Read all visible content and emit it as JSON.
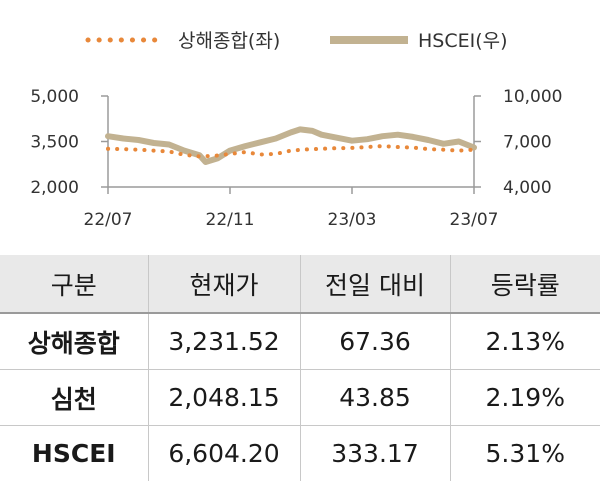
{
  "chart_data": {
    "type": "line",
    "xlabel": "",
    "ylabel": "",
    "x_ticks": [
      "22/07",
      "22/11",
      "23/03",
      "23/07"
    ],
    "x_range": [
      0,
      12
    ],
    "left_axis": {
      "range": [
        2000,
        5000
      ],
      "ticks": [
        "2,000",
        "3,500",
        "5,000"
      ],
      "tick_values": [
        2000,
        3500,
        5000
      ]
    },
    "right_axis": {
      "range": [
        4000,
        10000
      ],
      "ticks": [
        "4,000",
        "7,000",
        "10,000"
      ],
      "tick_values": [
        4000,
        7000,
        10000
      ]
    },
    "grid": false,
    "legend_position": "top",
    "series": [
      {
        "name": "상해종합(좌)",
        "axis": "left",
        "style": "dotted",
        "color": "#e8883a",
        "x": [
          0,
          0.5,
          1,
          1.5,
          2,
          2.5,
          3,
          3.5,
          4,
          4.5,
          5,
          5.5,
          6,
          6.5,
          7,
          7.5,
          8,
          8.5,
          9,
          9.5,
          10,
          10.5,
          11,
          11.5,
          12
        ],
        "values": [
          3260,
          3250,
          3230,
          3200,
          3170,
          3060,
          3010,
          3030,
          3090,
          3150,
          3070,
          3090,
          3200,
          3240,
          3260,
          3280,
          3290,
          3320,
          3350,
          3320,
          3300,
          3250,
          3230,
          3200,
          3231
        ]
      },
      {
        "name": "HSCEI(우)",
        "axis": "right",
        "style": "solid",
        "color": "#c2b291",
        "x": [
          0,
          0.5,
          1,
          1.5,
          2,
          2.5,
          3,
          3.2,
          3.6,
          4,
          4.5,
          5,
          5.5,
          6,
          6.3,
          6.7,
          7,
          7.5,
          8,
          8.5,
          9,
          9.5,
          10,
          10.5,
          11,
          11.5,
          12
        ],
        "values": [
          7350,
          7200,
          7100,
          6900,
          6800,
          6400,
          6100,
          5650,
          5900,
          6400,
          6700,
          6950,
          7200,
          7600,
          7800,
          7700,
          7450,
          7250,
          7050,
          7150,
          7350,
          7450,
          7300,
          7100,
          6850,
          7000,
          6604
        ]
      }
    ]
  },
  "table": {
    "headers": [
      "구분",
      "현재가",
      "전일 대비",
      "등락률"
    ],
    "rows": [
      [
        "상해종합",
        "3,231.52",
        "67.36",
        "2.13%"
      ],
      [
        "심천",
        "2,048.15",
        "43.85",
        "2.19%"
      ],
      [
        "HSCEI",
        "6,604.20",
        "333.17",
        "5.31%"
      ]
    ]
  }
}
